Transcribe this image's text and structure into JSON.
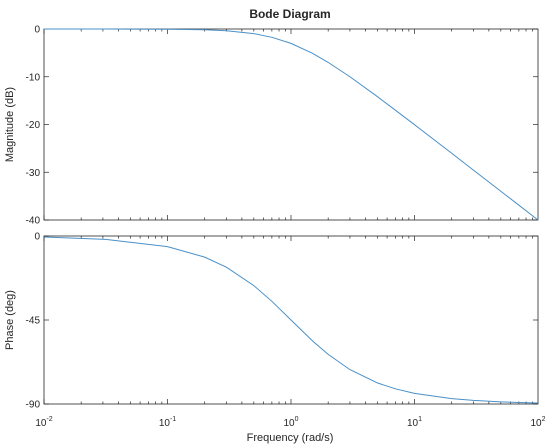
{
  "chart_data": {
    "type": "line",
    "title": "Bode Diagram",
    "xlabel": "Frequency  (rad/s)",
    "xscale": "log",
    "xlim": [
      0.01,
      100
    ],
    "x_tick_labels": [
      {
        "base": "10",
        "exp": "-2",
        "value": 0.01
      },
      {
        "base": "10",
        "exp": "-1",
        "value": 0.1
      },
      {
        "base": "10",
        "exp": "0",
        "value": 1
      },
      {
        "base": "10",
        "exp": "1",
        "value": 10
      },
      {
        "base": "10",
        "exp": "2",
        "value": 100
      }
    ],
    "grid": false,
    "line_color": "#4a90c8",
    "subplots": [
      {
        "ylabel": "Magnitude (dB)",
        "ylim": [
          -40,
          0
        ],
        "yticks": [
          0,
          -10,
          -20,
          -30,
          -40
        ],
        "y_tick_labels": [
          "0",
          "-10",
          "-20",
          "-30",
          "-40"
        ],
        "x": [
          0.01,
          0.0316,
          0.1,
          0.2,
          0.3,
          0.5,
          0.7,
          1,
          1.5,
          2,
          3,
          5,
          7,
          10,
          20,
          30,
          50,
          70,
          100
        ],
        "y": [
          0,
          -0.004,
          -0.04,
          -0.17,
          -0.37,
          -0.97,
          -1.74,
          -3.01,
          -5.12,
          -6.99,
          -10.0,
          -14.15,
          -17.0,
          -20.04,
          -26.03,
          -29.55,
          -33.98,
          -36.9,
          -40.0
        ]
      },
      {
        "ylabel": "Phase (deg)",
        "ylim": [
          -90,
          0
        ],
        "yticks": [
          0,
          -45,
          -90
        ],
        "y_tick_labels": [
          "0",
          "-45",
          "-90"
        ],
        "x": [
          0.01,
          0.0316,
          0.1,
          0.2,
          0.3,
          0.5,
          0.7,
          1,
          1.5,
          2,
          3,
          5,
          7,
          10,
          20,
          30,
          50,
          70,
          100
        ],
        "y": [
          -0.57,
          -1.81,
          -5.71,
          -11.31,
          -16.7,
          -26.57,
          -34.99,
          -45.0,
          -56.31,
          -63.43,
          -71.57,
          -78.69,
          -81.87,
          -84.29,
          -87.14,
          -88.09,
          -88.85,
          -89.18,
          -89.43
        ]
      }
    ]
  }
}
